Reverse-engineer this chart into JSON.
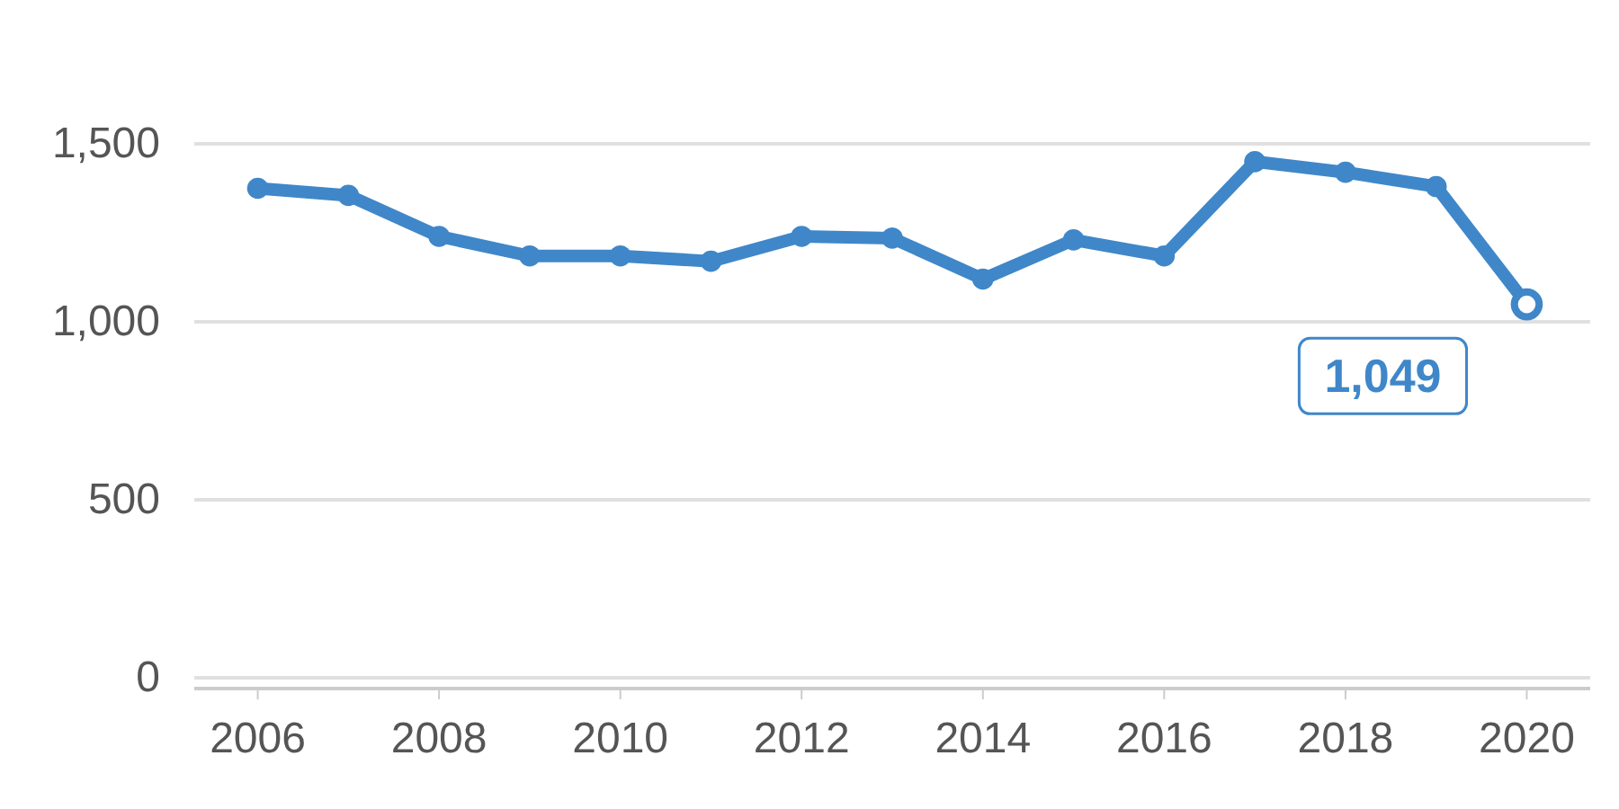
{
  "chart_data": {
    "type": "line",
    "x": [
      2006,
      2007,
      2008,
      2009,
      2010,
      2011,
      2012,
      2013,
      2014,
      2015,
      2016,
      2017,
      2018,
      2019,
      2020
    ],
    "series": [
      {
        "color": "#3f87c9",
        "values": [
          1375,
          1355,
          1240,
          1185,
          1185,
          1170,
          1240,
          1235,
          1120,
          1230,
          1185,
          1450,
          1420,
          1380,
          1049
        ]
      }
    ],
    "xlim": [
      2005.3,
      2020.7
    ],
    "xticks": [
      2006,
      2008,
      2010,
      2012,
      2014,
      2016,
      2018,
      2020
    ],
    "ylim": [
      0,
      1500
    ],
    "yticks": [
      {
        "value": 0,
        "label": "0"
      },
      {
        "value": 500,
        "label": "500"
      },
      {
        "value": 1000,
        "label": "1,000"
      },
      {
        "value": 1500,
        "label": "1,500"
      }
    ],
    "grid": "y",
    "marker": "circle",
    "line_style": "solid",
    "annotations": [
      {
        "text": "1,049",
        "x": 2020,
        "y": 1049
      }
    ]
  }
}
